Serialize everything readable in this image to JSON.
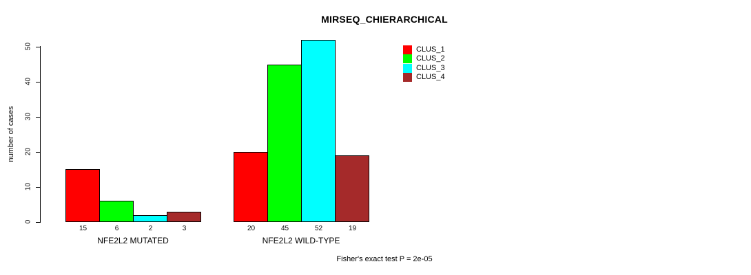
{
  "title": "MIRSEQ_CHIERARCHICAL",
  "footnote": "Fisher's exact test P = 2e-05",
  "ylabel": "number of cases",
  "chart_data": {
    "type": "bar",
    "title": "MIRSEQ_CHIERARCHICAL",
    "xlabel": "",
    "ylabel": "number of cases",
    "ylim": [
      0,
      50
    ],
    "yticks": [
      0,
      10,
      20,
      30,
      40,
      50
    ],
    "grid": false,
    "legend_position": "top-right",
    "categories": [
      "NFE2L2 MUTATED",
      "NFE2L2 WILD-TYPE"
    ],
    "series": [
      {
        "name": "CLUS_1",
        "color": "#ff0000",
        "values": [
          15,
          20
        ]
      },
      {
        "name": "CLUS_2",
        "color": "#00ff00",
        "values": [
          6,
          45
        ]
      },
      {
        "name": "CLUS_3",
        "color": "#00ffff",
        "values": [
          2,
          52
        ]
      },
      {
        "name": "CLUS_4",
        "color": "#a52a2a",
        "values": [
          3,
          19
        ]
      }
    ],
    "bar_labels": [
      [
        15,
        6,
        2,
        3
      ],
      [
        20,
        45,
        52,
        19
      ]
    ],
    "annotation": "Fisher's exact test P = 2e-05"
  }
}
